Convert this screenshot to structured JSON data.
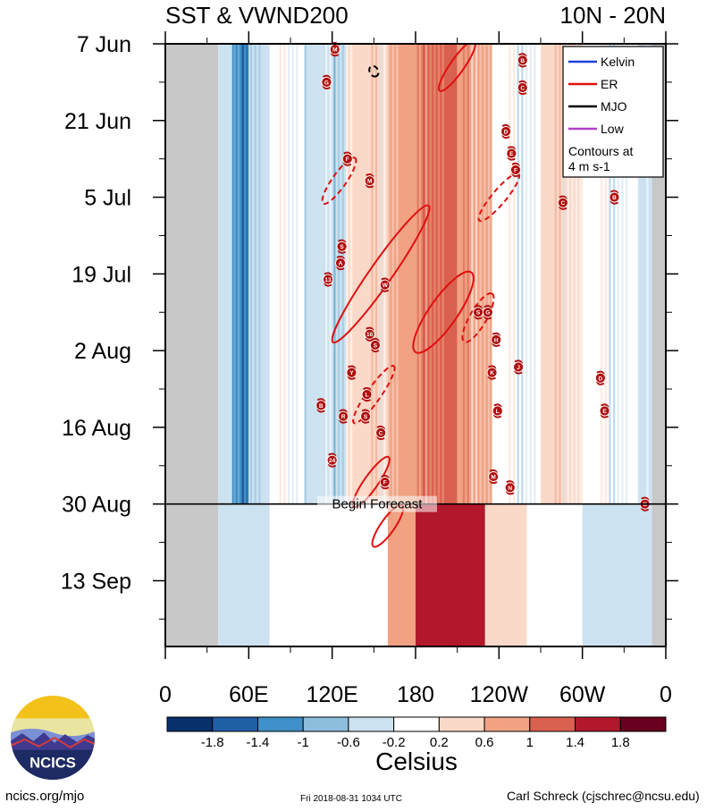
{
  "chart_data": {
    "type": "heatmap",
    "title_left": "SST & VWND200",
    "title_right": "10N - 20N",
    "y_labels": [
      "7 Jun",
      "21 Jun",
      "5 Jul",
      "19 Jul",
      "2 Aug",
      "16 Aug",
      "30 Aug",
      "13 Sep"
    ],
    "x_labels": [
      "0",
      "60E",
      "120E",
      "180",
      "120W",
      "60W",
      "0"
    ],
    "x_range_deg": [
      0,
      360
    ],
    "time_range_days": [
      0,
      110
    ],
    "forecast_label": "Begin Forecast",
    "forecast_day": 84,
    "legend": {
      "entries": [
        {
          "name": "Kelvin",
          "color": "#1f3fd8"
        },
        {
          "name": "ER",
          "color": "#e01010"
        },
        {
          "name": "MJO",
          "color": "#000000"
        },
        {
          "name": "Low",
          "color": "#b040c8"
        }
      ],
      "note_line1": "Contours at",
      "note_line2": "4 m s-1"
    },
    "colorbar": {
      "title": "Celsius",
      "tick_labels": [
        "-1.8",
        "-1.4",
        "-1",
        "-0.6",
        "-0.2",
        "0.2",
        "0.6",
        "1",
        "1.4",
        "1.8"
      ],
      "colors": [
        "#08306b",
        "#1f5fa6",
        "#3f8fc8",
        "#8dbedd",
        "#cde2f0",
        "#ffffff",
        "#fbd9c9",
        "#f0a283",
        "#d9614f",
        "#b2182b",
        "#67001f"
      ]
    },
    "sst_bands": [
      {
        "lon": [
          0,
          38
        ],
        "value": null
      },
      {
        "lon": [
          38,
          48
        ],
        "value": -0.6
      },
      {
        "lon": [
          48,
          60
        ],
        "value": -1.4
      },
      {
        "lon": [
          60,
          75
        ],
        "value": -0.6
      },
      {
        "lon": [
          75,
          85
        ],
        "value": -0.2
      },
      {
        "lon": [
          85,
          100
        ],
        "value": 0.0
      },
      {
        "lon": [
          100,
          112
        ],
        "value": -0.6
      },
      {
        "lon": [
          112,
          130
        ],
        "value": -0.6
      },
      {
        "lon": [
          130,
          160
        ],
        "value": 0.2
      },
      {
        "lon": [
          160,
          185
        ],
        "value": 0.6
      },
      {
        "lon": [
          185,
          210
        ],
        "value": 1.0
      },
      {
        "lon": [
          210,
          235
        ],
        "value": 0.6
      },
      {
        "lon": [
          235,
          270
        ],
        "value": -0.2
      },
      {
        "lon": [
          270,
          300
        ],
        "value": 0.2
      },
      {
        "lon": [
          300,
          340
        ],
        "value": -0.2
      },
      {
        "lon": [
          340,
          350
        ],
        "value": -0.6
      },
      {
        "lon": [
          350,
          360
        ],
        "value": null
      }
    ],
    "sst_forecast_bands": [
      {
        "lon": [
          38,
          75
        ],
        "value": -0.6
      },
      {
        "lon": [
          75,
          160
        ],
        "value": -0.2
      },
      {
        "lon": [
          160,
          180
        ],
        "value": 0.6
      },
      {
        "lon": [
          180,
          230
        ],
        "value": 1.4
      },
      {
        "lon": [
          230,
          260
        ],
        "value": 0.2
      },
      {
        "lon": [
          260,
          300
        ],
        "value": -0.2
      },
      {
        "lon": [
          300,
          350
        ],
        "value": -0.6
      }
    ],
    "er_contours": [
      {
        "lon": 155,
        "day": 42,
        "a_deg": 60,
        "b_deg": 8,
        "tilt_deg": -55,
        "dashed": false
      },
      {
        "lon": 200,
        "day": 49,
        "a_deg": 35,
        "b_deg": 10,
        "tilt_deg": -55,
        "dashed": false
      },
      {
        "lon": 225,
        "day": 50,
        "a_deg": 20,
        "b_deg": 6,
        "tilt_deg": -60,
        "dashed": true
      },
      {
        "lon": 150,
        "day": 64,
        "a_deg": 25,
        "b_deg": 5,
        "tilt_deg": -55,
        "dashed": true
      },
      {
        "lon": 125,
        "day": 25,
        "a_deg": 20,
        "b_deg": 5,
        "tilt_deg": -55,
        "dashed": true
      },
      {
        "lon": 240,
        "day": 28,
        "a_deg": 22,
        "b_deg": 5,
        "tilt_deg": -50,
        "dashed": true
      },
      {
        "lon": 148,
        "day": 80,
        "a_deg": 22,
        "b_deg": 5,
        "tilt_deg": -55,
        "dashed": false
      },
      {
        "lon": 160,
        "day": 88,
        "a_deg": 18,
        "b_deg": 5,
        "tilt_deg": -55,
        "dashed": false
      },
      {
        "lon": 210,
        "day": 4,
        "a_deg": 22,
        "b_deg": 5,
        "tilt_deg": -55,
        "dashed": false
      }
    ],
    "mjo_contours": [
      {
        "lon": 150,
        "day": 5,
        "a_deg": 4,
        "b_deg": 3,
        "tilt_deg": 60,
        "dashed": true
      }
    ],
    "storms": [
      {
        "lbl": "M",
        "lon": 122,
        "day": 1
      },
      {
        "lbl": "G",
        "lon": 116,
        "day": 7
      },
      {
        "lbl": "B",
        "lon": 257,
        "day": 3
      },
      {
        "lbl": "C",
        "lon": 257,
        "day": 8
      },
      {
        "lbl": "D",
        "lon": 245,
        "day": 16
      },
      {
        "lbl": "E",
        "lon": 249,
        "day": 20
      },
      {
        "lbl": "F",
        "lon": 252,
        "day": 23
      },
      {
        "lbl": "F",
        "lon": 131,
        "day": 21
      },
      {
        "lbl": "M",
        "lon": 147,
        "day": 25
      },
      {
        "lbl": "C",
        "lon": 286,
        "day": 29
      },
      {
        "lbl": "B",
        "lon": 323,
        "day": 28
      },
      {
        "lbl": "S",
        "lon": 127,
        "day": 37
      },
      {
        "lbl": "A",
        "lon": 126,
        "day": 40
      },
      {
        "lbl": "13",
        "lon": 117,
        "day": 43
      },
      {
        "lbl": "W",
        "lon": 158,
        "day": 44
      },
      {
        "lbl": "S",
        "lon": 225,
        "day": 49
      },
      {
        "lbl": "G",
        "lon": 232,
        "day": 49
      },
      {
        "lbl": "16",
        "lon": 147,
        "day": 53
      },
      {
        "lbl": "S",
        "lon": 151,
        "day": 55
      },
      {
        "lbl": "H",
        "lon": 238,
        "day": 54
      },
      {
        "lbl": "Y",
        "lon": 134,
        "day": 60
      },
      {
        "lbl": "K",
        "lon": 235,
        "day": 60
      },
      {
        "lbl": "J",
        "lon": 254,
        "day": 59
      },
      {
        "lbl": "D",
        "lon": 313,
        "day": 61
      },
      {
        "lbl": "L",
        "lon": 145,
        "day": 64
      },
      {
        "lbl": "B",
        "lon": 112,
        "day": 66
      },
      {
        "lbl": "R",
        "lon": 128,
        "day": 68
      },
      {
        "lbl": "S",
        "lon": 144,
        "day": 68
      },
      {
        "lbl": "C",
        "lon": 155,
        "day": 71
      },
      {
        "lbl": "L",
        "lon": 239,
        "day": 67
      },
      {
        "lbl": "E",
        "lon": 316,
        "day": 67
      },
      {
        "lbl": "24",
        "lon": 120,
        "day": 76
      },
      {
        "lbl": "F",
        "lon": 158,
        "day": 80
      },
      {
        "lbl": "M",
        "lon": 236,
        "day": 79
      },
      {
        "lbl": "N",
        "lon": 248,
        "day": 81
      },
      {
        "lbl": "G",
        "lon": 345,
        "day": 84
      }
    ]
  },
  "footer": {
    "left": "ncics.org/mjo",
    "mid": "Fri 2018-08-31 1034 UTC",
    "right": "Carl Schreck (cjschrec@ncsu.edu)",
    "logo_text": "NCICS"
  }
}
